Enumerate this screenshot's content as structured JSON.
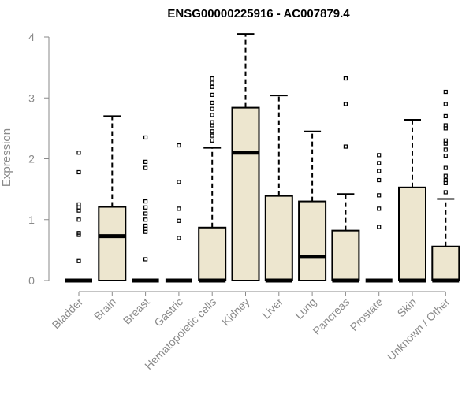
{
  "chart_data": {
    "type": "box",
    "title": "ENSG00000225916 - AC007879.4",
    "xlabel": "",
    "ylabel": "Expression",
    "ylim": [
      0,
      4
    ],
    "yticks": [
      0,
      1,
      2,
      3,
      4
    ],
    "grid": false,
    "colors": {
      "box_fill": "#ede6cf",
      "stroke": "#000000",
      "axis": "#8a8a8a",
      "text": "#8a8a8a"
    },
    "categories": [
      "Bladder",
      "Brain",
      "Breast",
      "Gastric",
      "Hematopoietic cells",
      "Kidney",
      "Liver",
      "Lung",
      "Pancreas",
      "Prostate",
      "Skin",
      "Unknown / Other"
    ],
    "boxes": [
      {
        "category": "Bladder",
        "q1": 0,
        "median": 0,
        "q3": 0,
        "whisker_low": 0,
        "whisker_high": 0,
        "outliers": [
          0.32,
          0.75,
          0.78,
          1.0,
          1.15,
          1.2,
          1.25,
          1.78,
          2.1
        ]
      },
      {
        "category": "Brain",
        "q1": 0,
        "median": 0.73,
        "q3": 1.21,
        "whisker_low": 0,
        "whisker_high": 2.7,
        "outliers": []
      },
      {
        "category": "Breast",
        "q1": 0,
        "median": 0,
        "q3": 0,
        "whisker_low": 0,
        "whisker_high": 0,
        "outliers": [
          0.35,
          0.8,
          0.85,
          0.9,
          1.0,
          1.1,
          1.2,
          1.3,
          1.85,
          1.95,
          2.35
        ]
      },
      {
        "category": "Gastric",
        "q1": 0,
        "median": 0,
        "q3": 0,
        "whisker_low": 0,
        "whisker_high": 0,
        "outliers": [
          0.7,
          0.98,
          1.18,
          1.62,
          2.22
        ]
      },
      {
        "category": "Hematopoietic cells",
        "q1": 0,
        "median": 0,
        "q3": 0.87,
        "whisker_low": 0,
        "whisker_high": 2.18,
        "outliers": [
          2.3,
          2.38,
          2.45,
          2.55,
          2.6,
          2.72,
          2.82,
          2.92,
          3.05,
          3.18,
          3.25,
          3.32
        ]
      },
      {
        "category": "Kidney",
        "q1": 0,
        "median": 2.1,
        "q3": 2.84,
        "whisker_low": 0,
        "whisker_high": 4.05,
        "outliers": []
      },
      {
        "category": "Liver",
        "q1": 0,
        "median": 0,
        "q3": 1.39,
        "whisker_low": 0,
        "whisker_high": 3.04,
        "outliers": []
      },
      {
        "category": "Lung",
        "q1": 0,
        "median": 0.39,
        "q3": 1.3,
        "whisker_low": 0,
        "whisker_high": 2.45,
        "outliers": []
      },
      {
        "category": "Pancreas",
        "q1": 0,
        "median": 0,
        "q3": 0.82,
        "whisker_low": 0,
        "whisker_high": 1.42,
        "outliers": [
          2.2,
          2.9,
          3.32
        ]
      },
      {
        "category": "Prostate",
        "q1": 0,
        "median": 0,
        "q3": 0,
        "whisker_low": 0,
        "whisker_high": 0,
        "outliers": [
          0.88,
          1.18,
          1.4,
          1.65,
          1.8,
          1.93,
          2.06
        ]
      },
      {
        "category": "Skin",
        "q1": 0,
        "median": 0,
        "q3": 1.53,
        "whisker_low": 0,
        "whisker_high": 2.64,
        "outliers": []
      },
      {
        "category": "Unknown / Other",
        "q1": 0,
        "median": 0,
        "q3": 0.56,
        "whisker_low": 0,
        "whisker_high": 1.34,
        "outliers": [
          1.45,
          1.6,
          1.65,
          1.72,
          1.85,
          2.05,
          2.15,
          2.25,
          2.3,
          2.5,
          2.55,
          2.7,
          2.9,
          3.1
        ]
      }
    ]
  }
}
